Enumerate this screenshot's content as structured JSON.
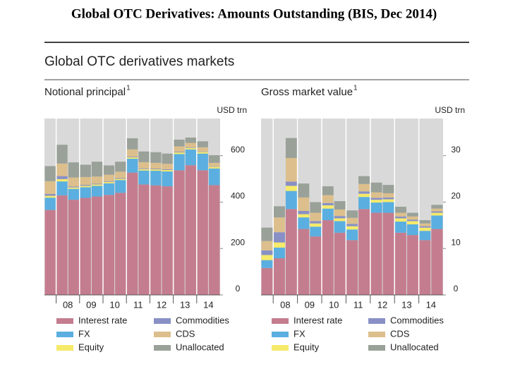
{
  "title": "Global OTC Derivatives: Amounts Outstanding (BIS, Dec 2014)",
  "heading": "Global OTC derivatives markets",
  "chart_data": [
    {
      "type": "bar",
      "stacked": true,
      "title": "Notional principal",
      "title_note": "1",
      "unit_label": "USD trn",
      "categories": [
        null,
        "08",
        null,
        "09",
        null,
        "10",
        null,
        "11",
        null,
        "12",
        null,
        "13",
        null,
        "14",
        null
      ],
      "ylim": [
        0,
        760
      ],
      "yticks": [
        0,
        200,
        400,
        600
      ],
      "series": [
        {
          "name": "Interest rate",
          "color": "#c47d8f",
          "values": [
            366,
            429,
            410,
            418,
            424,
            431,
            440,
            527,
            476,
            472,
            468,
            537,
            559,
            537,
            473
          ]
        },
        {
          "name": "FX",
          "color": "#5aafe0",
          "values": [
            53,
            60,
            47,
            46,
            46,
            50,
            55,
            60,
            60,
            63,
            64,
            70,
            68,
            72,
            72
          ]
        },
        {
          "name": "Equity",
          "color": "#f5ea6a",
          "values": [
            8,
            10,
            6,
            6,
            6,
            6,
            5,
            6,
            6,
            6,
            6,
            7,
            6,
            7,
            7
          ]
        },
        {
          "name": "Commodities",
          "color": "#8890c6",
          "values": [
            8,
            13,
            4,
            4,
            3,
            3,
            3,
            3,
            3,
            3,
            3,
            3,
            2,
            2,
            2
          ]
        },
        {
          "name": "CDS",
          "color": "#dcbf8c",
          "values": [
            55,
            54,
            39,
            34,
            31,
            28,
            28,
            31,
            27,
            25,
            24,
            23,
            20,
            18,
            15
          ]
        },
        {
          "name": "Unallocated",
          "color": "#99a199",
          "values": [
            65,
            81,
            65,
            53,
            64,
            40,
            43,
            48,
            46,
            46,
            44,
            29,
            23,
            26,
            33
          ]
        }
      ]
    },
    {
      "type": "bar",
      "stacked": true,
      "title": "Gross market value",
      "title_note": "1",
      "unit_label": "USD trn",
      "categories": [
        null,
        "08",
        null,
        "09",
        null,
        "10",
        null,
        "11",
        null,
        "12",
        null,
        "13",
        null,
        "14",
        null
      ],
      "ylim": [
        0,
        38
      ],
      "yticks": [
        0,
        10,
        20,
        30
      ],
      "series": [
        {
          "name": "Interest rate",
          "color": "#c47d8f",
          "values": [
            5.8,
            7.9,
            18.5,
            14.2,
            12.6,
            16.1,
            13.4,
            11.8,
            18.5,
            17.7,
            17.7,
            13.4,
            12.9,
            11.8,
            14.2
          ]
        },
        {
          "name": "FX",
          "color": "#5aafe0",
          "values": [
            1.7,
            2.3,
            3.9,
            2.5,
            2.1,
            2.5,
            2.5,
            2.3,
            2.6,
            2.2,
            2.3,
            2.4,
            2.3,
            2.0,
            2.9
          ]
        },
        {
          "name": "Equity",
          "color": "#f5ea6a",
          "values": [
            1.1,
            1.1,
            1.1,
            0.7,
            0.7,
            0.7,
            0.6,
            0.7,
            0.7,
            0.6,
            0.6,
            0.7,
            0.7,
            0.7,
            0.6
          ]
        },
        {
          "name": "Commodities",
          "color": "#8890c6",
          "values": [
            1.0,
            2.2,
            0.9,
            0.7,
            0.5,
            0.5,
            0.5,
            0.5,
            0.5,
            0.4,
            0.4,
            0.4,
            0.3,
            0.3,
            0.3
          ]
        },
        {
          "name": "CDS",
          "color": "#dcbf8c",
          "values": [
            2.0,
            3.2,
            5.1,
            2.9,
            1.8,
            1.7,
            1.4,
            1.3,
            1.6,
            1.2,
            0.9,
            0.8,
            0.7,
            0.6,
            0.6
          ]
        },
        {
          "name": "Unallocated",
          "color": "#99a199",
          "values": [
            2.9,
            2.4,
            4.3,
            3.0,
            2.3,
            1.9,
            1.8,
            1.6,
            1.7,
            2.1,
            1.8,
            1.3,
            0.8,
            0.7,
            0.8
          ]
        }
      ]
    }
  ]
}
